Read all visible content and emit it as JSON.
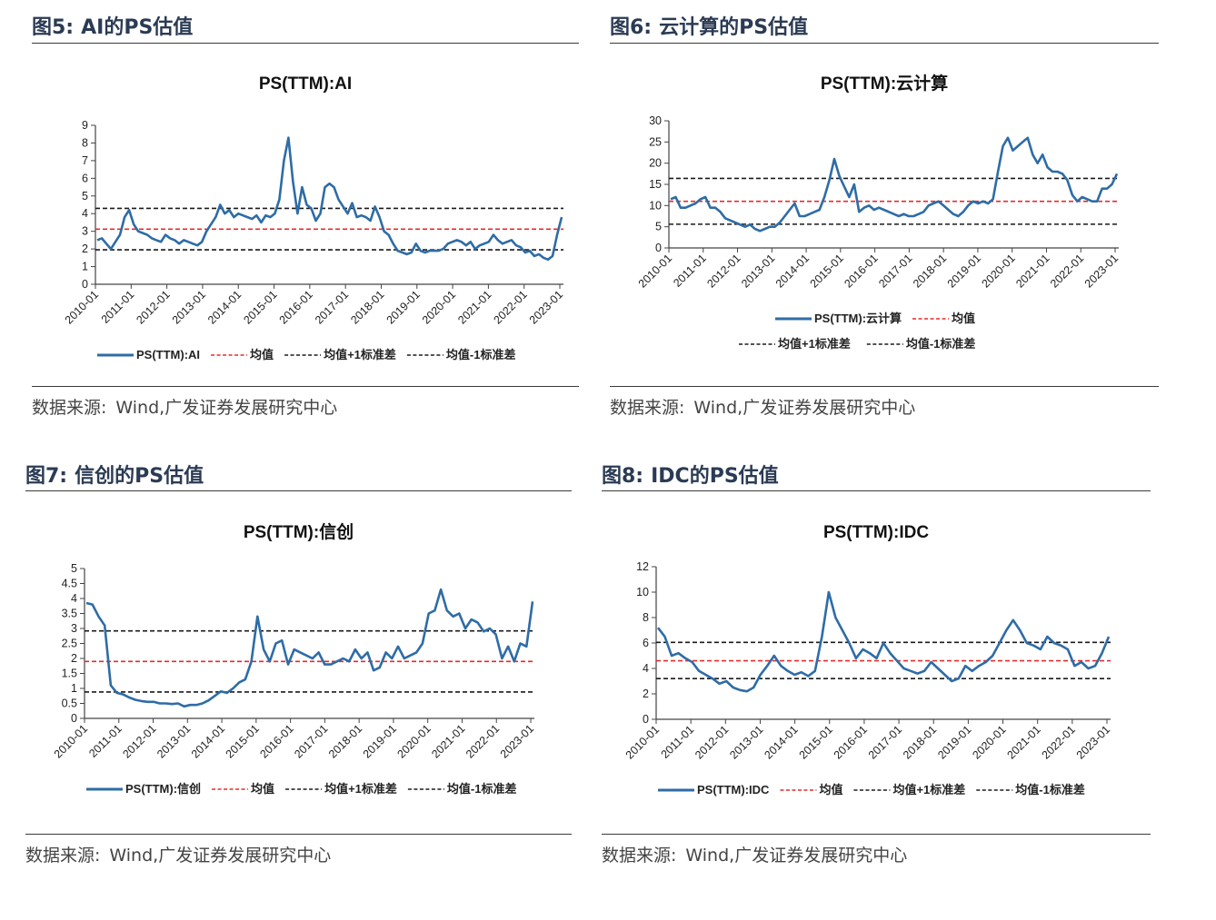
{
  "figures": [
    {
      "number": "图5:",
      "title": "AI的PS估值",
      "source_label": "数据来源:",
      "source_text": "Wind,广发证券发展研究中心",
      "chart_data": {
        "type": "line",
        "title": "PS(TTM):AI",
        "x_ticks": [
          "2010-01",
          "2011-01",
          "2012-01",
          "2013-01",
          "2014-01",
          "2015-01",
          "2016-01",
          "2017-01",
          "2018-01",
          "2019-01",
          "2020-01",
          "2021-01",
          "2022-01",
          "2023-01"
        ],
        "ylim": [
          0,
          9
        ],
        "y_ticks": [
          0,
          1,
          2,
          3,
          4,
          5,
          6,
          7,
          8,
          9
        ],
        "y_tick_labels": [
          "0",
          "1",
          "2",
          "3",
          "4",
          "5",
          "6",
          "7",
          "8",
          "9"
        ],
        "series": [
          {
            "name": "PS(TTM):AI",
            "color": "#2e6ca6",
            "style": "solid",
            "values": [
              2.5,
              2.6,
              2.3,
              2.0,
              2.4,
              2.8,
              3.8,
              4.2,
              3.4,
              3.0,
              2.9,
              2.8,
              2.6,
              2.5,
              2.4,
              2.8,
              2.6,
              2.5,
              2.3,
              2.5,
              2.4,
              2.3,
              2.2,
              2.4,
              3.0,
              3.4,
              3.8,
              4.5,
              4.0,
              4.2,
              3.8,
              4.0,
              3.9,
              3.8,
              3.7,
              3.9,
              3.5,
              3.9,
              3.8,
              4.0,
              4.8,
              7.0,
              8.3,
              5.8,
              4.0,
              5.5,
              4.5,
              4.3,
              3.6,
              4.0,
              5.5,
              5.7,
              5.5,
              4.8,
              4.4,
              4.0,
              4.6,
              3.8,
              3.9,
              3.8,
              3.6,
              4.4,
              3.8,
              3.0,
              2.8,
              2.3,
              1.9,
              1.8,
              1.7,
              1.8,
              2.3,
              1.9,
              1.8,
              1.9,
              1.9,
              1.9,
              2.0,
              2.3,
              2.4,
              2.5,
              2.4,
              2.2,
              2.4,
              2.0,
              2.2,
              2.3,
              2.4,
              2.8,
              2.5,
              2.3,
              2.4,
              2.5,
              2.2,
              2.1,
              1.8,
              1.9,
              1.6,
              1.7,
              1.5,
              1.4,
              1.6,
              2.8,
              3.8
            ]
          },
          {
            "name": "均值",
            "color": "#e32b2b",
            "style": "dashed",
            "values": [
              3.12
            ]
          },
          {
            "name": "均值+1标准差",
            "color": "#1a1a1a",
            "style": "dashed",
            "values": [
              4.3
            ]
          },
          {
            "name": "均值-1标准差",
            "color": "#1a1a1a",
            "style": "dashed",
            "values": [
              1.95
            ]
          }
        ]
      }
    },
    {
      "number": "图6:",
      "title": "云计算的PS估值",
      "source_label": "数据来源:",
      "source_text": "Wind,广发证券发展研究中心",
      "chart_data": {
        "type": "line",
        "title": "PS(TTM):云计算",
        "x_ticks": [
          "2010-01",
          "2011-01",
          "2012-01",
          "2013-01",
          "2014-01",
          "2015-01",
          "2016-01",
          "2017-01",
          "2018-01",
          "2019-01",
          "2020-01",
          "2021-01",
          "2022-01",
          "2023-01"
        ],
        "ylim": [
          0,
          30
        ],
        "y_ticks": [
          0,
          5,
          10,
          15,
          20,
          25,
          30
        ],
        "y_tick_labels": [
          "0",
          "5",
          "10",
          "15",
          "20",
          "25",
          "30"
        ],
        "series": [
          {
            "name": "PS(TTM):云计算",
            "color": "#2e6ca6",
            "style": "solid",
            "values": [
              11.5,
              12,
              9.5,
              9.5,
              10,
              10.5,
              11.5,
              12,
              9.5,
              9.5,
              8.5,
              7,
              6.5,
              6,
              5.5,
              5,
              5.5,
              4.5,
              4,
              4.5,
              5,
              5,
              6,
              7.5,
              9,
              10.5,
              7.5,
              7.5,
              8,
              8.5,
              9,
              12,
              16,
              21,
              17,
              14.5,
              12,
              15,
              8.5,
              9.5,
              10,
              9,
              9.5,
              9,
              8.5,
              8,
              7.5,
              8,
              7.5,
              7.5,
              8,
              8.5,
              10,
              10.5,
              11,
              10,
              9,
              8,
              7.5,
              8.5,
              10,
              11,
              10.5,
              11,
              10.5,
              11.5,
              18,
              24,
              26,
              23,
              24,
              25,
              26,
              22,
              20,
              22,
              19,
              18,
              18,
              17.5,
              16,
              12.5,
              11,
              12,
              11.5,
              11,
              11,
              14,
              14,
              15,
              17.5
            ]
          },
          {
            "name": "均值",
            "color": "#e32b2b",
            "style": "dashed",
            "values": [
              11
            ]
          },
          {
            "name": "均值+1标准差",
            "color": "#1a1a1a",
            "style": "dashed",
            "values": [
              16.4
            ]
          },
          {
            "name": "均值-1标准差",
            "color": "#1a1a1a",
            "style": "dashed",
            "values": [
              5.6
            ]
          }
        ]
      }
    },
    {
      "number": "图7:",
      "title": "信创的PS估值",
      "source_label": "数据来源:",
      "source_text": "Wind,广发证券发展研究中心",
      "chart_data": {
        "type": "line",
        "title": "PS(TTM):信创",
        "x_ticks": [
          "2010-01",
          "2011-01",
          "2012-01",
          "2013-01",
          "2014-01",
          "2015-01",
          "2016-01",
          "2017-01",
          "2018-01",
          "2019-01",
          "2020-01",
          "2021-01",
          "2022-01",
          "2023-01"
        ],
        "ylim": [
          0,
          5
        ],
        "y_ticks": [
          0,
          0.5,
          1,
          1.5,
          2,
          2.5,
          3,
          3.5,
          4,
          4.5,
          5
        ],
        "y_tick_labels": [
          "0",
          "0.5",
          "1",
          "1.5",
          "2",
          "2.5",
          "3",
          "3.5",
          "4",
          "4.5",
          "5"
        ],
        "series": [
          {
            "name": "PS(TTM):信创",
            "color": "#2e6ca6",
            "style": "solid",
            "values": [
              3.85,
              3.8,
              3.4,
              3.1,
              1.1,
              0.85,
              0.8,
              0.7,
              0.62,
              0.58,
              0.55,
              0.55,
              0.5,
              0.5,
              0.48,
              0.5,
              0.4,
              0.45,
              0.45,
              0.5,
              0.6,
              0.75,
              0.9,
              0.85,
              1.0,
              1.2,
              1.3,
              1.9,
              3.4,
              2.3,
              1.9,
              2.5,
              2.6,
              1.8,
              2.3,
              2.2,
              2.1,
              2.0,
              2.2,
              1.8,
              1.8,
              1.9,
              2.0,
              1.9,
              2.3,
              2.0,
              2.2,
              1.6,
              1.7,
              2.2,
              2.0,
              2.4,
              2.0,
              2.1,
              2.2,
              2.5,
              3.5,
              3.6,
              4.3,
              3.6,
              3.4,
              3.5,
              3.0,
              3.3,
              3.2,
              2.9,
              3.0,
              2.8,
              2.0,
              2.4,
              1.9,
              2.5,
              2.4,
              3.9
            ]
          },
          {
            "name": "均值",
            "color": "#e32b2b",
            "style": "dashed",
            "values": [
              1.9
            ]
          },
          {
            "name": "均值+1标准差",
            "color": "#1a1a1a",
            "style": "dashed",
            "values": [
              2.92
            ]
          },
          {
            "name": "均值-1标准差",
            "color": "#1a1a1a",
            "style": "dashed",
            "values": [
              0.88
            ]
          }
        ]
      }
    },
    {
      "number": "图8:",
      "title": "IDC的PS估值",
      "source_label": "数据来源:",
      "source_text": "Wind,广发证券发展研究中心",
      "chart_data": {
        "type": "line",
        "title": "PS(TTM):IDC",
        "x_ticks": [
          "2010-01",
          "2011-01",
          "2012-01",
          "2013-01",
          "2014-01",
          "2015-01",
          "2016-01",
          "2017-01",
          "2018-01",
          "2019-01",
          "2020-01",
          "2021-01",
          "2022-01",
          "2023-01"
        ],
        "ylim": [
          0,
          12
        ],
        "y_ticks": [
          0,
          2,
          4,
          6,
          8,
          10,
          12
        ],
        "y_tick_labels": [
          "0",
          "2",
          "4",
          "6",
          "8",
          "10",
          "12"
        ],
        "series": [
          {
            "name": "PS(TTM):IDC",
            "color": "#2e6ca6",
            "style": "solid",
            "values": [
              7.2,
              6.5,
              5.0,
              5.2,
              4.8,
              4.5,
              3.8,
              3.5,
              3.2,
              2.8,
              3.0,
              2.5,
              2.3,
              2.2,
              2.5,
              3.5,
              4.2,
              5.0,
              4.2,
              3.8,
              3.5,
              3.7,
              3.4,
              3.8,
              6.5,
              10.0,
              8.0,
              7.0,
              6.0,
              4.8,
              5.5,
              5.2,
              4.8,
              6.0,
              5.2,
              4.6,
              4.0,
              3.8,
              3.6,
              3.8,
              4.5,
              4.0,
              3.5,
              3.0,
              3.2,
              4.2,
              3.8,
              4.2,
              4.5,
              5.0,
              6.0,
              7.0,
              7.8,
              7.0,
              6.0,
              5.8,
              5.5,
              6.5,
              6.0,
              5.8,
              5.5,
              4.2,
              4.5,
              4.0,
              4.2,
              5.2,
              6.5
            ]
          },
          {
            "name": "均值",
            "color": "#e32b2b",
            "style": "dashed",
            "values": [
              4.6
            ]
          },
          {
            "name": "均值+1标准差",
            "color": "#1a1a1a",
            "style": "dashed",
            "values": [
              6.05
            ]
          },
          {
            "name": "均值-1标准差",
            "color": "#1a1a1a",
            "style": "dashed",
            "values": [
              3.2
            ]
          }
        ]
      }
    }
  ]
}
